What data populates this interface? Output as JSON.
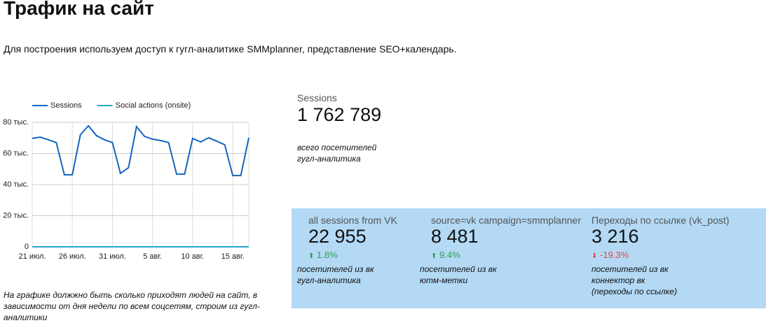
{
  "header": {
    "title": "Трафик на сайт",
    "subtitle": "Для построения используем доступ к гугл-аналитике SMMplanner, представление SEO+календарь."
  },
  "chart_data": {
    "type": "line",
    "categories": [
      "21 июл.",
      null,
      null,
      null,
      null,
      "26 июл.",
      null,
      null,
      null,
      null,
      "31 июл.",
      null,
      null,
      null,
      null,
      "5 авг.",
      null,
      null,
      null,
      null,
      "10 авг.",
      null,
      null,
      null,
      null,
      "15 авг.",
      null,
      null
    ],
    "series": [
      {
        "name": "Sessions",
        "color": "#1565c0",
        "values": [
          69.7,
          70.5,
          68.8,
          67,
          46.3,
          46.3,
          72,
          77.8,
          71.5,
          68.8,
          67,
          47.2,
          50.8,
          77.3,
          71,
          69.2,
          68.3,
          67,
          46.7,
          46.7,
          69.7,
          67.4,
          70.1,
          67.9,
          65.6,
          45.8,
          45.8,
          70.1
        ]
      },
      {
        "name": "Social actions (onsite)",
        "color": "#26a6d1",
        "values": [
          0,
          0,
          0,
          0,
          0,
          0,
          0,
          0,
          0,
          0,
          0,
          0,
          0,
          0,
          0,
          0,
          0,
          0,
          0,
          0,
          0,
          0,
          0,
          0,
          0,
          0,
          0,
          0
        ]
      }
    ],
    "ylim": [
      0,
      80
    ],
    "yticks": [
      0,
      {
        "value": 20,
        "label": "20 тыс."
      },
      {
        "value": 40,
        "label": "40 тыс."
      },
      {
        "value": 60,
        "label": "60 тыс."
      },
      {
        "value": 80,
        "label": "80 тыс."
      }
    ],
    "grid": true,
    "legend": "top"
  },
  "chart_note": [
    "На графике должжно быть сколько приходят людей на сайт, в",
    "зависимости от дня недели по всем соцсетям, строим из гугл-",
    "аналитики"
  ],
  "total": {
    "label": "Sessions",
    "value": "1 762 789",
    "caption": [
      "всего посетителей",
      "гугл-аналитика"
    ]
  },
  "cards": [
    {
      "label": "all sessions from VK",
      "value": "22 955",
      "delta": "1.8%",
      "caption": [
        "посетителей из вк",
        "гугл-аналитика"
      ]
    },
    {
      "label": "source=vk campaign=smmplanner",
      "value": "8 481",
      "delta": "9.4%",
      "caption": [
        "посетителей из вк",
        "ютм-метки"
      ]
    },
    {
      "label": "Переходы по ссылке (vk_post)",
      "value": "3 216",
      "delta": "-19.3%",
      "caption": [
        "посетителей из вк",
        "коннектор вк",
        "(переходы по ссылке)"
      ]
    }
  ]
}
